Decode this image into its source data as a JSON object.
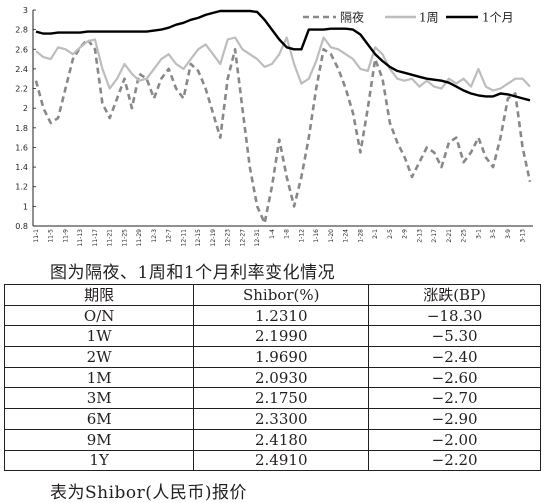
{
  "chart_data": {
    "type": "line",
    "title": "",
    "xlabel": "",
    "ylabel": "",
    "ylim": [
      0.8,
      3.0
    ],
    "y_ticks": [
      "0.8",
      "1",
      "1.2",
      "1.4",
      "1.6",
      "1.8",
      "2",
      "2.2",
      "2.4",
      "2.6",
      "2.8",
      "3"
    ],
    "grid": false,
    "legend_placement": "top-right",
    "categories": [
      "11-1",
      "11-3",
      "11-5",
      "11-7",
      "11-9",
      "11-11",
      "11-13",
      "11-15",
      "11-17",
      "11-19",
      "11-21",
      "11-23",
      "11-25",
      "11-27",
      "11-29",
      "12-1",
      "12-3",
      "12-5",
      "12-7",
      "12-9",
      "12-11",
      "12-13",
      "12-15",
      "12-17",
      "12-19",
      "12-21",
      "12-23",
      "12-25",
      "12-27",
      "12-29",
      "12-31",
      "1-2",
      "1-4",
      "1-6",
      "1-8",
      "1-10",
      "1-12",
      "1-14",
      "1-16",
      "1-18",
      "1-20",
      "1-22",
      "1-24",
      "1-26",
      "1-28",
      "1-30",
      "2-1",
      "2-3",
      "2-5",
      "2-7",
      "2-9",
      "2-11",
      "2-13",
      "2-15",
      "2-17",
      "2-19",
      "2-21",
      "2-23",
      "2-25",
      "2-27",
      "3-1",
      "3-3",
      "3-5",
      "3-7",
      "3-9",
      "3-11",
      "3-13",
      "3-15"
    ],
    "x_tick_labels": [
      "11-1",
      "11-5",
      "11-9",
      "11-13",
      "11-17",
      "11-21",
      "11-25",
      "11-29",
      "12-3",
      "12-7",
      "12-11",
      "12-15",
      "12-19",
      "12-23",
      "12-27",
      "12-31",
      "1-4",
      "1-8",
      "1-12",
      "1-16",
      "1-20",
      "1-24",
      "1-28",
      "2-1",
      "2-5",
      "2-9",
      "2-13",
      "2-17",
      "2-21",
      "2-25",
      "3-1",
      "3-5",
      "3-9",
      "3-13"
    ],
    "series": [
      {
        "name": "隔夜",
        "color": "#888888",
        "style": "dashed",
        "values": [
          2.28,
          2.0,
          1.85,
          1.9,
          2.2,
          2.5,
          2.62,
          2.7,
          2.6,
          2.05,
          1.9,
          2.1,
          2.3,
          2.0,
          2.35,
          2.3,
          2.1,
          2.3,
          2.4,
          2.2,
          2.1,
          2.45,
          2.38,
          2.2,
          1.95,
          1.7,
          2.3,
          2.6,
          2.0,
          1.4,
          1.0,
          0.83,
          1.2,
          1.68,
          1.3,
          1.0,
          1.3,
          1.7,
          2.2,
          2.6,
          2.55,
          2.4,
          2.2,
          1.95,
          1.55,
          2.0,
          2.5,
          2.3,
          1.85,
          1.65,
          1.5,
          1.3,
          1.45,
          1.6,
          1.55,
          1.4,
          1.65,
          1.7,
          1.45,
          1.55,
          1.7,
          1.5,
          1.4,
          1.7,
          2.1,
          2.15,
          1.6,
          1.25
        ]
      },
      {
        "name": "1周",
        "color": "#bdbdbd",
        "style": "solid",
        "values": [
          2.58,
          2.52,
          2.5,
          2.62,
          2.6,
          2.55,
          2.62,
          2.68,
          2.7,
          2.4,
          2.2,
          2.3,
          2.45,
          2.35,
          2.28,
          2.3,
          2.4,
          2.5,
          2.55,
          2.45,
          2.4,
          2.5,
          2.6,
          2.65,
          2.55,
          2.45,
          2.7,
          2.72,
          2.6,
          2.55,
          2.5,
          2.42,
          2.45,
          2.55,
          2.72,
          2.45,
          2.25,
          2.3,
          2.48,
          2.72,
          2.62,
          2.6,
          2.55,
          2.5,
          2.4,
          2.38,
          2.62,
          2.55,
          2.4,
          2.3,
          2.28,
          2.3,
          2.22,
          2.28,
          2.22,
          2.2,
          2.3,
          2.25,
          2.3,
          2.22,
          2.4,
          2.22,
          2.18,
          2.2,
          2.25,
          2.3,
          2.3,
          2.22
        ]
      },
      {
        "name": "1个月",
        "color": "#000000",
        "style": "solid",
        "values": [
          2.78,
          2.76,
          2.76,
          2.77,
          2.77,
          2.77,
          2.77,
          2.78,
          2.78,
          2.78,
          2.78,
          2.78,
          2.78,
          2.78,
          2.78,
          2.78,
          2.79,
          2.8,
          2.82,
          2.85,
          2.87,
          2.9,
          2.92,
          2.95,
          2.97,
          2.99,
          2.99,
          2.99,
          2.99,
          2.99,
          2.98,
          2.9,
          2.8,
          2.7,
          2.62,
          2.6,
          2.6,
          2.8,
          2.8,
          2.8,
          2.81,
          2.81,
          2.81,
          2.8,
          2.75,
          2.65,
          2.55,
          2.48,
          2.42,
          2.38,
          2.36,
          2.34,
          2.32,
          2.3,
          2.29,
          2.28,
          2.26,
          2.22,
          2.18,
          2.15,
          2.13,
          2.12,
          2.12,
          2.15,
          2.14,
          2.12,
          2.1,
          2.08
        ]
      }
    ]
  },
  "chart_caption": "图为隔夜、1周和1个月利率变化情况",
  "table": {
    "headers": [
      "期限",
      "Shibor(%)",
      "涨跌(BP)"
    ],
    "rows": [
      [
        "O/N",
        "1.2310",
        "−18.30"
      ],
      [
        "1W",
        "2.1990",
        "−5.30"
      ],
      [
        "2W",
        "1.9690",
        "−2.40"
      ],
      [
        "1M",
        "2.0930",
        "−2.60"
      ],
      [
        "3M",
        "2.1750",
        "−2.70"
      ],
      [
        "6M",
        "2.3300",
        "−2.90"
      ],
      [
        "9M",
        "2.4180",
        "−2.00"
      ],
      [
        "1Y",
        "2.4910",
        "−2.20"
      ]
    ]
  },
  "table_caption": "表为Shibor(人民币)报价"
}
